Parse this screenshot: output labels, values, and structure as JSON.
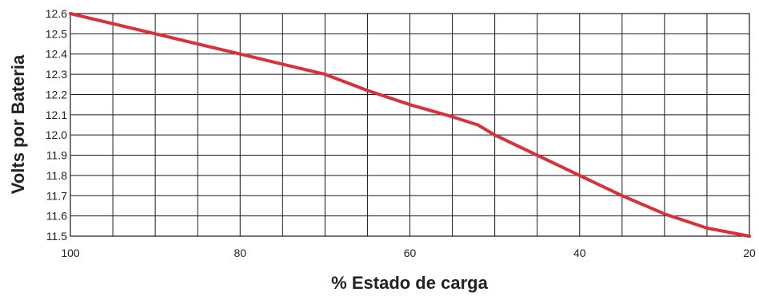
{
  "chart_data": {
    "type": "line",
    "title": "",
    "xlabel": "% Estado de carga",
    "ylabel": "Volts por Bateria",
    "xlim": [
      100,
      20
    ],
    "ylim": [
      11.5,
      12.6
    ],
    "x_direction": "descending",
    "grid": true,
    "x_grid_step": 5,
    "y_grid_step": 0.1,
    "x_ticks": [
      "100",
      "80",
      "60",
      "40",
      "20"
    ],
    "y_ticks": [
      "12.6",
      "12.5",
      "12.4",
      "12.3",
      "12.2",
      "12.1",
      "12.0",
      "11.9",
      "11.8",
      "11.7",
      "11.6",
      "11.5"
    ],
    "series": [
      {
        "color": "#d9303a",
        "x": [
          100,
          90,
          80,
          75,
          70,
          65,
          60,
          55,
          52,
          50,
          45,
          40,
          35,
          30,
          25,
          20
        ],
        "y": [
          12.6,
          12.5,
          12.4,
          12.35,
          12.3,
          12.22,
          12.15,
          12.09,
          12.05,
          12.0,
          11.9,
          11.8,
          11.7,
          11.61,
          11.54,
          11.5
        ]
      }
    ]
  }
}
